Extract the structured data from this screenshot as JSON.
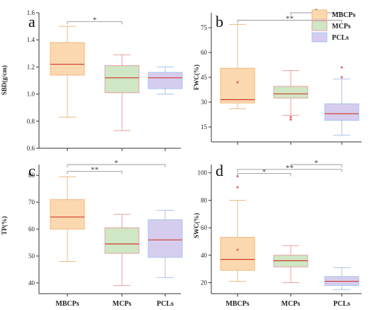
{
  "colors": {
    "MBCPs": {
      "fill": "#fbd8b0",
      "edge": "#f0b87e"
    },
    "MCPs": {
      "fill": "#cfe7c4",
      "edge": "#e8a0a0"
    },
    "PCLs": {
      "fill": "#d6cdee",
      "edge": "#a9c4ec"
    },
    "median": "#d43a2a",
    "bracket": "#999999",
    "outlier": "#e86a6a"
  },
  "legend": {
    "placement": "top-right",
    "items": [
      {
        "label": "MBCPs",
        "color_key": "MBCPs"
      },
      {
        "label": "MCPs",
        "color_key": "MCPs"
      },
      {
        "label": "PCLs",
        "color_key": "PCLs"
      }
    ]
  },
  "chart_data": [
    {
      "type": "box",
      "letter": "a",
      "ylabel": "SBD(g/cm)",
      "ylim": [
        0.6,
        1.6
      ],
      "yticks": [
        "0.6",
        "0.8",
        "1.0",
        "1.2",
        "1.4",
        "1.6"
      ],
      "categories": [
        "MBCPs",
        "MCPs",
        "PCLs"
      ],
      "show_xlabels": false,
      "boxes": [
        {
          "min": 0.83,
          "q1": 1.14,
          "median": 1.22,
          "q3": 1.38,
          "max": 1.5,
          "mean": null,
          "outliers": []
        },
        {
          "min": 0.73,
          "q1": 1.01,
          "median": 1.12,
          "q3": 1.21,
          "max": 1.29,
          "mean": null,
          "outliers": []
        },
        {
          "min": 1.0,
          "q1": 1.04,
          "median": 1.12,
          "q3": 1.16,
          "max": 1.2,
          "mean": null,
          "outliers": []
        }
      ],
      "significance": [
        {
          "from": 0,
          "to": 1,
          "y": 1.535,
          "label": "*"
        }
      ]
    },
    {
      "type": "box",
      "letter": "b",
      "ylabel": "FWC(%)",
      "ylim": [
        6,
        84
      ],
      "yticks": [
        "15",
        "30",
        "45",
        "60",
        "75"
      ],
      "categories": [
        "MBCPs",
        "MCPs",
        "PCLs"
      ],
      "show_xlabels": false,
      "boxes": [
        {
          "min": 26,
          "q1": 29.5,
          "median": 31.5,
          "q3": 50.5,
          "max": 77,
          "mean": 42,
          "outliers": []
        },
        {
          "min": 22,
          "q1": 32.5,
          "median": 35,
          "q3": 39.5,
          "max": 49,
          "mean": null,
          "outliers": [
            19.5,
            21
          ]
        },
        {
          "min": 10,
          "q1": 19,
          "median": 23,
          "q3": 29,
          "max": 44,
          "mean": null,
          "outliers": [
            45,
            51
          ]
        }
      ],
      "significance": [
        {
          "from": 0,
          "to": 2,
          "y": 79.5,
          "label": "**"
        },
        {
          "from": 1,
          "to": 2,
          "y": 84,
          "label": "*"
        }
      ]
    },
    {
      "type": "box",
      "letter": "c",
      "ylabel": "TP(%)",
      "ylim": [
        36,
        84
      ],
      "yticks": [
        "40",
        "50",
        "60",
        "70",
        "80"
      ],
      "categories": [
        "MBCPs",
        "MCPs",
        "PCLs"
      ],
      "show_xlabels": true,
      "boxes": [
        {
          "min": 48,
          "q1": 60,
          "median": 64.5,
          "q3": 71,
          "max": 79.5,
          "mean": null,
          "outliers": []
        },
        {
          "min": 39,
          "q1": 51,
          "median": 54.5,
          "q3": 60.5,
          "max": 65.5,
          "mean": null,
          "outliers": []
        },
        {
          "min": 42,
          "q1": 49.5,
          "median": 56,
          "q3": 63.5,
          "max": 67,
          "mean": null,
          "outliers": []
        }
      ],
      "significance": [
        {
          "from": 0,
          "to": 1,
          "y": 81.5,
          "label": "**"
        },
        {
          "from": 0,
          "to": 2,
          "y": 84,
          "label": "*"
        }
      ]
    },
    {
      "type": "box",
      "letter": "d",
      "ylabel": "SWC(%)",
      "ylim": [
        12,
        106
      ],
      "yticks": [
        "20",
        "40",
        "60",
        "80",
        "100"
      ],
      "categories": [
        "MBCPs",
        "MCPs",
        "PCLs"
      ],
      "show_xlabels": true,
      "boxes": [
        {
          "min": 21,
          "q1": 29,
          "median": 37,
          "q3": 53,
          "max": 80,
          "mean": 44,
          "outliers": [
            89.5,
            97.5
          ]
        },
        {
          "min": 20,
          "q1": 31.5,
          "median": 36,
          "q3": 40,
          "max": 47,
          "mean": null,
          "outliers": []
        },
        {
          "min": 15,
          "q1": 18,
          "median": 21,
          "q3": 24.5,
          "max": 31,
          "mean": null,
          "outliers": []
        }
      ],
      "significance": [
        {
          "from": 0,
          "to": 1,
          "y": 99.5,
          "label": "*"
        },
        {
          "from": 0,
          "to": 2,
          "y": 102.5,
          "label": "**"
        },
        {
          "from": 1,
          "to": 2,
          "y": 106,
          "label": "*"
        }
      ]
    }
  ]
}
